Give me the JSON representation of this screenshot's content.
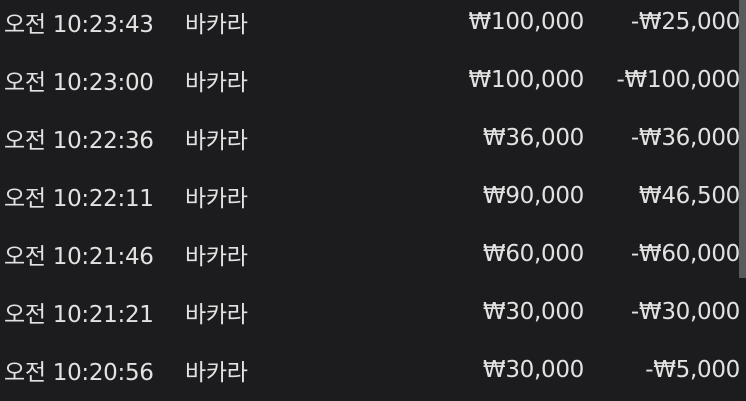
{
  "rows": [
    {
      "time": "오전 10:23:43",
      "game": "바카라",
      "bet": "₩100,000",
      "result": "-₩25,000"
    },
    {
      "time": "오전 10:23:00",
      "game": "바카라",
      "bet": "₩100,000",
      "result": "-₩100,000"
    },
    {
      "time": "오전 10:22:36",
      "game": "바카라",
      "bet": "₩36,000",
      "result": "-₩36,000"
    },
    {
      "time": "오전 10:22:11",
      "game": "바카라",
      "bet": "₩90,000",
      "result": "₩46,500"
    },
    {
      "time": "오전 10:21:46",
      "game": "바카라",
      "bet": "₩60,000",
      "result": "-₩60,000"
    },
    {
      "time": "오전 10:21:21",
      "game": "바카라",
      "bet": "₩30,000",
      "result": "-₩30,000"
    },
    {
      "time": "오전 10:20:56",
      "game": "바카라",
      "bet": "₩30,000",
      "result": "-₩5,000"
    }
  ],
  "colors": {
    "background": "#1c1c1e",
    "text": "#e2e2e2",
    "scrollbar": "#5a5a5c"
  }
}
